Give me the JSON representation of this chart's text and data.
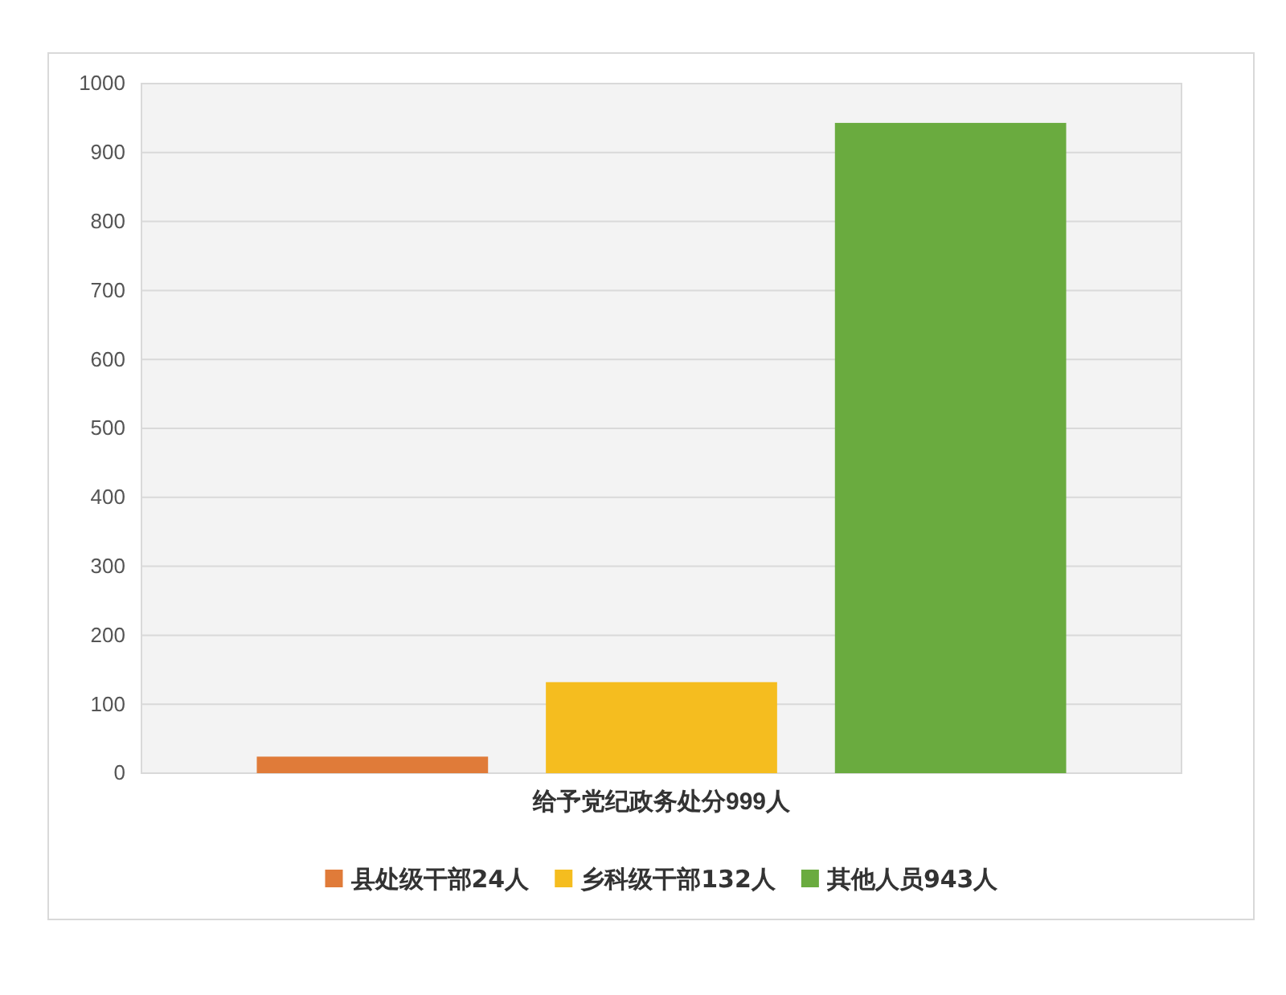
{
  "chart_data": {
    "type": "bar",
    "categories": [
      "给予党纪政务处分999人"
    ],
    "series": [
      {
        "name": "县处级干部24人",
        "color": "#e07b39",
        "values": [
          24
        ]
      },
      {
        "name": "乡科级干部132人",
        "color": "#f5bd1f",
        "values": [
          132
        ]
      },
      {
        "name": "其他人员943人",
        "color": "#6aab3f",
        "values": [
          943
        ]
      }
    ],
    "ylim": [
      0,
      1000
    ],
    "yticks": [
      0,
      100,
      200,
      300,
      400,
      500,
      600,
      700,
      800,
      900,
      1000
    ],
    "grid": "y",
    "legend": "bottom"
  }
}
